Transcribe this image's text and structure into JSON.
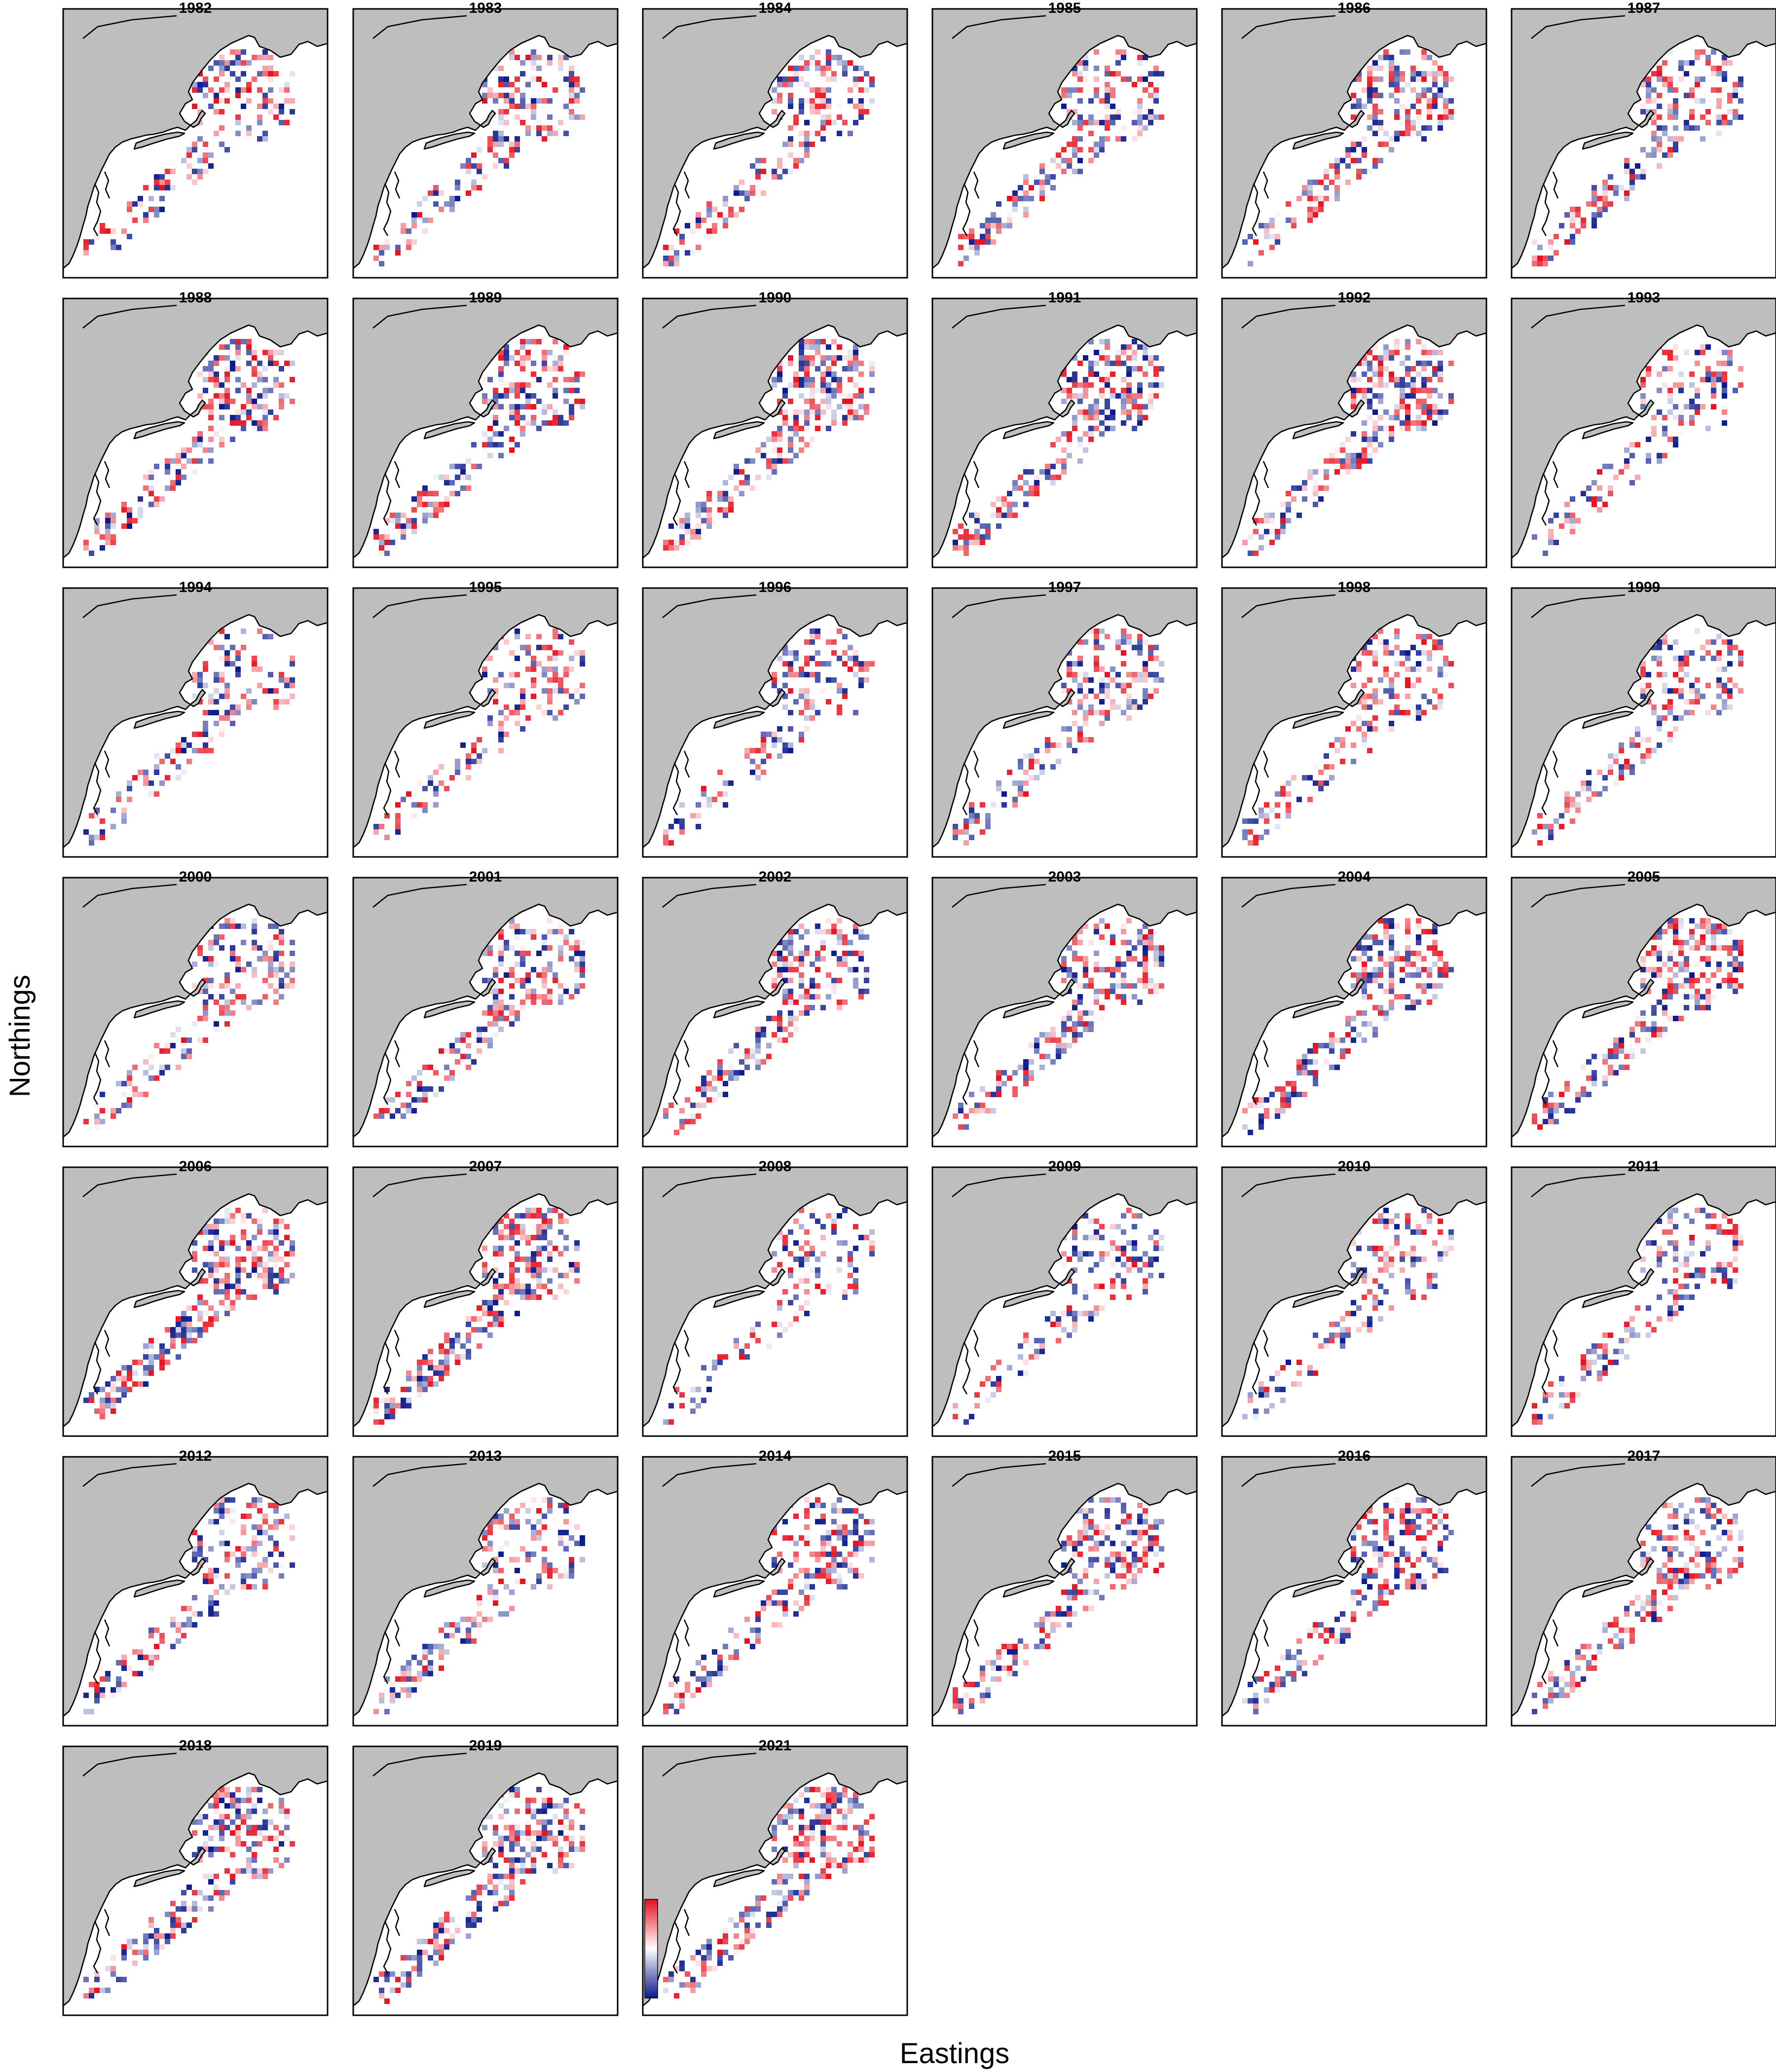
{
  "chart_data": {
    "type": "heatmap",
    "description_kind": "small multiples map",
    "xlabel": "Eastings",
    "ylabel": "Northings",
    "panels": [
      "1982",
      "1983",
      "1984",
      "1985",
      "1986",
      "1987",
      "1988",
      "1989",
      "1990",
      "1991",
      "1992",
      "1993",
      "1994",
      "1995",
      "1996",
      "1997",
      "1998",
      "1999",
      "2000",
      "2001",
      "2002",
      "2003",
      "2004",
      "2005",
      "2006",
      "2007",
      "2008",
      "2009",
      "2010",
      "2011",
      "2012",
      "2013",
      "2014",
      "2015",
      "2016",
      "2017",
      "2018",
      "2019",
      "2021"
    ],
    "layout": {
      "columns": 6,
      "rows": 7
    },
    "colorscale": {
      "low": "#0a1a8c",
      "mid": "#ffffff",
      "high": "#e8101e"
    },
    "colors": {
      "land": "#bebebe",
      "frame": "#000000",
      "background": "#ffffff"
    }
  }
}
